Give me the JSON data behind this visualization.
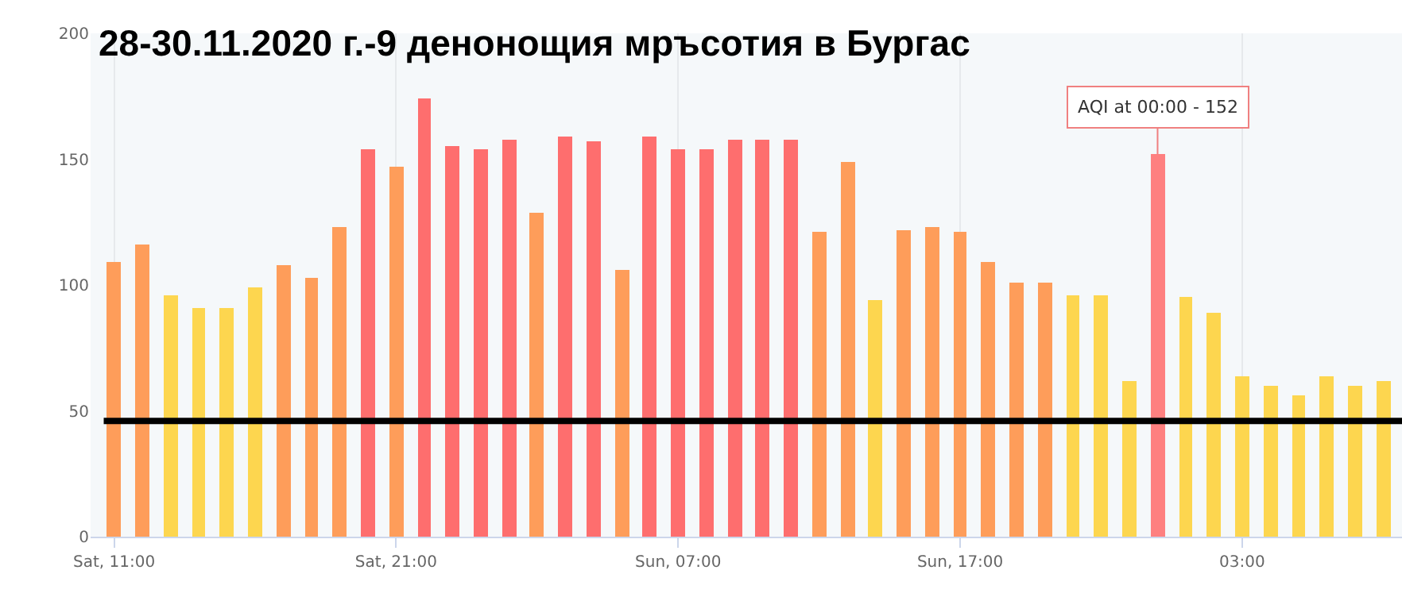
{
  "chart_data": {
    "type": "bar",
    "title": "28-30.11.2020 г.-9 денонощия мръсотия в Бургас",
    "x": [
      "2020-11-28T11:00",
      "2020-11-28T12:00",
      "2020-11-28T13:00",
      "2020-11-28T14:00",
      "2020-11-28T15:00",
      "2020-11-28T16:00",
      "2020-11-28T17:00",
      "2020-11-28T18:00",
      "2020-11-28T19:00",
      "2020-11-28T20:00",
      "2020-11-28T21:00",
      "2020-11-28T22:00",
      "2020-11-28T23:00",
      "2020-11-29T00:00",
      "2020-11-29T01:00",
      "2020-11-29T02:00",
      "2020-11-29T03:00",
      "2020-11-29T04:00",
      "2020-11-29T05:00",
      "2020-11-29T06:00",
      "2020-11-29T07:00",
      "2020-11-29T08:00",
      "2020-11-29T09:00",
      "2020-11-29T10:00",
      "2020-11-29T11:00",
      "2020-11-29T12:00",
      "2020-11-29T13:00",
      "2020-11-29T14:00",
      "2020-11-29T15:00",
      "2020-11-29T16:00",
      "2020-11-29T17:00",
      "2020-11-29T18:00",
      "2020-11-29T19:00",
      "2020-11-29T20:00",
      "2020-11-29T21:00",
      "2020-11-29T22:00",
      "2020-11-29T23:00",
      "2020-11-30T00:00",
      "2020-11-30T01:00",
      "2020-11-30T02:00",
      "2020-11-30T03:00",
      "2020-11-30T04:00",
      "2020-11-30T05:00",
      "2020-11-30T06:00",
      "2020-11-30T07:00",
      "2020-11-30T08:00"
    ],
    "values": [
      109,
      116,
      96,
      91,
      91,
      99,
      108,
      103,
      123,
      154,
      147,
      174,
      155,
      154,
      158,
      129,
      159,
      157,
      106,
      159,
      154,
      154,
      158,
      158,
      158,
      121,
      149,
      94,
      122,
      123,
      121,
      109,
      101,
      101,
      96,
      96,
      62,
      152,
      95,
      89,
      64,
      60,
      56,
      64,
      60,
      62
    ],
    "colors": [
      "#fe9d5a",
      "#fe9d5a",
      "#fdd64f",
      "#fdd64f",
      "#fdd64f",
      "#fdd64f",
      "#fe9d5a",
      "#fe9d5a",
      "#fe9d5a",
      "#fe6e6e",
      "#fe9d5a",
      "#fe6e6e",
      "#fe6e6e",
      "#fe6e6e",
      "#fe6e6e",
      "#fe9d5a",
      "#fe6e6e",
      "#fe6e6e",
      "#fe9d5a",
      "#fe6e6e",
      "#fe6e6e",
      "#fe6e6e",
      "#fe6e6e",
      "#fe6e6e",
      "#fe6e6e",
      "#fe9d5a",
      "#fe9d5a",
      "#fdd64f",
      "#fe9d5a",
      "#fe9d5a",
      "#fe9d5a",
      "#fe9d5a",
      "#fe9d5a",
      "#fe9d5a",
      "#fdd64f",
      "#fdd64f",
      "#fdd64f",
      "#fe8080",
      "#fdd64f",
      "#fdd64f",
      "#fdd64f",
      "#fdd64f",
      "#fdd64f",
      "#fdd64f",
      "#fdd64f",
      "#fdd64f"
    ],
    "xlim": [
      "2020-11-28T10:10",
      "2020-11-30T08:40"
    ],
    "xticks": [
      {
        "value": "2020-11-28T11:00",
        "label": "Sat, 11:00"
      },
      {
        "value": "2020-11-28T21:00",
        "label": "Sat, 21:00"
      },
      {
        "value": "2020-11-29T07:00",
        "label": "Sun, 07:00"
      },
      {
        "value": "2020-11-29T17:00",
        "label": "Sun, 17:00"
      },
      {
        "value": "2020-11-30T03:00",
        "label": "03:00"
      }
    ],
    "ylim": [
      0,
      200
    ],
    "yticks": [
      0,
      50,
      100,
      150,
      200
    ],
    "grid": "x",
    "ref_lines": [
      {
        "axis": "y",
        "value": 46,
        "color": "#000000"
      }
    ],
    "annotations": [
      {
        "text": "AQI at 00:00 - 152",
        "x": "2020-11-30T00:00",
        "y": 152
      }
    ]
  }
}
